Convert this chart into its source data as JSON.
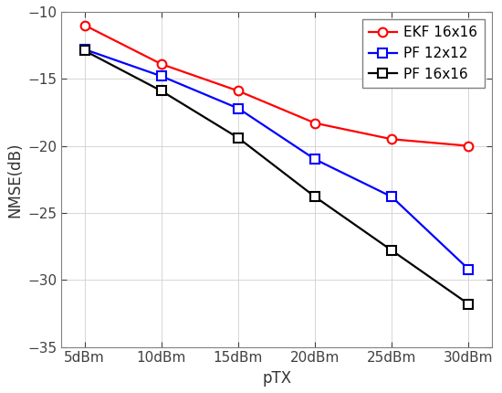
{
  "x_labels": [
    "5dBm",
    "10dBm",
    "15dBm",
    "20dBm",
    "25dBm",
    "30dBm"
  ],
  "x_values": [
    5,
    10,
    15,
    20,
    25,
    30
  ],
  "series": [
    {
      "label": "EKF 16x16",
      "color": "#FF0000",
      "marker": "o",
      "markersize": 7,
      "markerfacecolor": "white",
      "markeredgewidth": 1.5,
      "linewidth": 1.6,
      "y": [
        -11.0,
        -13.9,
        -15.9,
        -18.3,
        -19.5,
        -20.0
      ]
    },
    {
      "label": "PF 12x12",
      "color": "#0000FF",
      "marker": "s",
      "markersize": 7,
      "markerfacecolor": "white",
      "markeredgewidth": 1.5,
      "linewidth": 1.6,
      "y": [
        -12.8,
        -14.8,
        -17.2,
        -21.0,
        -23.8,
        -29.2
      ]
    },
    {
      "label": "PF 16x16",
      "color": "#000000",
      "marker": "s",
      "markersize": 7,
      "markerfacecolor": "white",
      "markeredgewidth": 1.5,
      "linewidth": 1.6,
      "y": [
        -12.9,
        -15.9,
        -19.4,
        -23.8,
        -27.8,
        -31.8
      ]
    }
  ],
  "xlabel": "pTX",
  "ylabel": "NMSE(dB)",
  "ylim": [
    -35,
    -10
  ],
  "yticks": [
    -35,
    -30,
    -25,
    -20,
    -15,
    -10
  ],
  "xlim": [
    3.5,
    31.5
  ],
  "grid": true,
  "legend_loc": "upper right",
  "title": "",
  "background_color": "#ffffff",
  "spine_color": "#808080",
  "tick_color": "#404040",
  "grid_color": "#d0d0d0"
}
